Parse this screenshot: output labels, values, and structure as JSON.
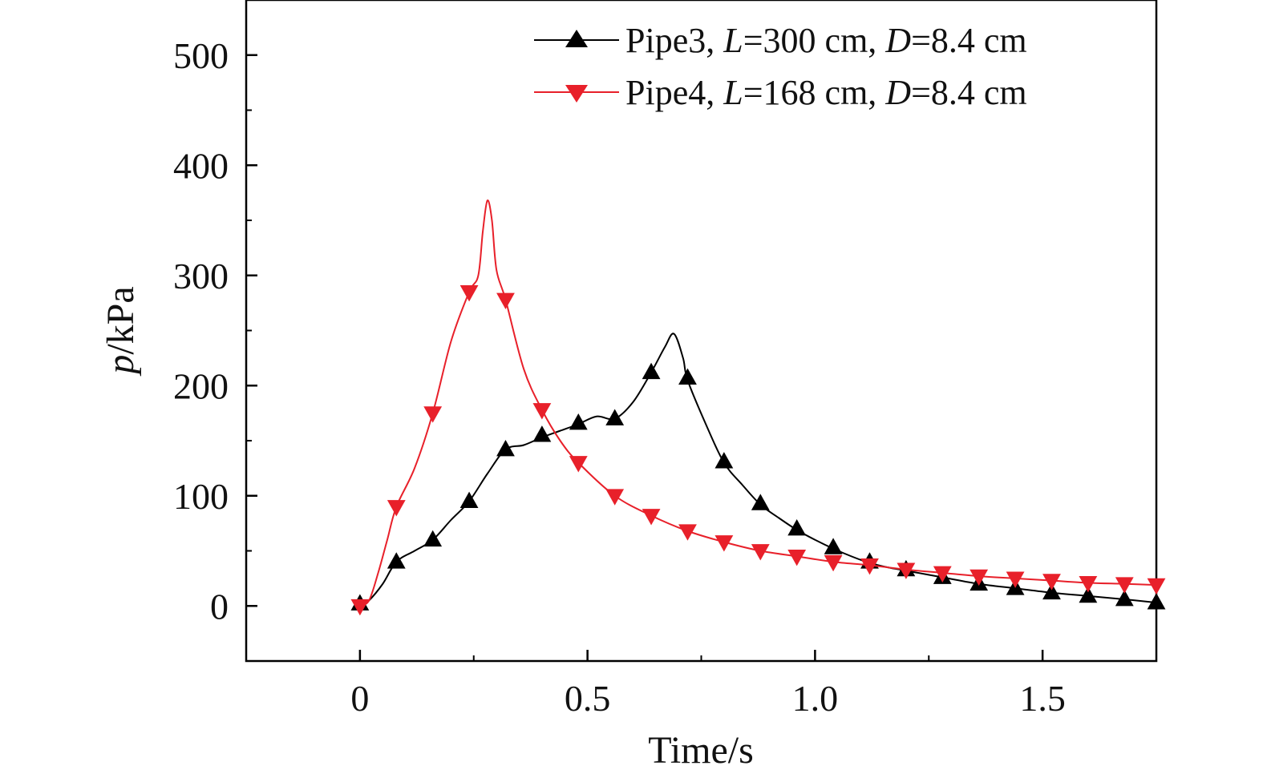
{
  "chart_data": {
    "type": "line",
    "xlabel": "Time/s",
    "ylabel_italic": "p",
    "ylabel_rest": "/kPa",
    "xlim": [
      -0.25,
      1.75
    ],
    "ylim": [
      -50,
      550
    ],
    "x_ticks": [
      0,
      0.5,
      1.0,
      1.5
    ],
    "x_tick_labels": [
      "0",
      "0.5",
      "1.0",
      "1.5"
    ],
    "y_ticks": [
      0,
      100,
      200,
      300,
      400,
      500
    ],
    "y_tick_labels": [
      "0",
      "100",
      "200",
      "300",
      "400",
      "500"
    ],
    "grid": false,
    "legend_position": "top-right",
    "series": [
      {
        "name": "Pipe3, L=300 cm, D=8.4 cm",
        "legend": {
          "pre": "Pipe3, ",
          "v1": "L",
          "mid": "=300 cm, ",
          "v2": "D",
          "post": "=8.4 cm"
        },
        "color": "#000000",
        "marker": "triangle-up",
        "x": [
          0,
          0.02,
          0.05,
          0.08,
          0.12,
          0.16,
          0.2,
          0.24,
          0.28,
          0.32,
          0.36,
          0.4,
          0.44,
          0.48,
          0.52,
          0.56,
          0.6,
          0.64,
          0.67,
          0.69,
          0.71,
          0.72,
          0.76,
          0.8,
          0.84,
          0.88,
          0.92,
          0.96,
          1.0,
          1.04,
          1.08,
          1.12,
          1.16,
          1.2,
          1.28,
          1.36,
          1.44,
          1.52,
          1.6,
          1.68,
          1.75
        ],
        "y": [
          0,
          5,
          20,
          40,
          50,
          60,
          78,
          95,
          120,
          142,
          146,
          153,
          159,
          165,
          172,
          170,
          185,
          212,
          235,
          247,
          225,
          205,
          165,
          130,
          110,
          92,
          80,
          69,
          60,
          52,
          45,
          39,
          35,
          32,
          26,
          20,
          16,
          12,
          9,
          6,
          3
        ],
        "marker_x": [
          0,
          0.08,
          0.16,
          0.24,
          0.32,
          0.4,
          0.48,
          0.56,
          0.64,
          0.72,
          0.8,
          0.88,
          0.96,
          1.04,
          1.12,
          1.2,
          1.28,
          1.36,
          1.44,
          1.52,
          1.6,
          1.68,
          1.75
        ],
        "marker_y": [
          2,
          40,
          60,
          95,
          142,
          155,
          166,
          170,
          212,
          207,
          131,
          93,
          70,
          53,
          40,
          33,
          26,
          20,
          16,
          12,
          9,
          6,
          3
        ]
      },
      {
        "name": "Pipe4, L=168 cm, D=8.4 cm",
        "legend": {
          "pre": "Pipe4, ",
          "v1": "L",
          "mid": "=168 cm, ",
          "v2": "D",
          "post": "=8.4 cm"
        },
        "color": "#e8202a",
        "marker": "triangle-down",
        "x": [
          0,
          0.02,
          0.04,
          0.06,
          0.08,
          0.12,
          0.16,
          0.2,
          0.24,
          0.26,
          0.27,
          0.28,
          0.29,
          0.3,
          0.32,
          0.36,
          0.4,
          0.44,
          0.48,
          0.56,
          0.64,
          0.72,
          0.8,
          0.88,
          0.96,
          1.04,
          1.12,
          1.2,
          1.28,
          1.36,
          1.44,
          1.52,
          1.6,
          1.68,
          1.75
        ],
        "y": [
          0,
          5,
          30,
          60,
          90,
          125,
          175,
          240,
          285,
          300,
          340,
          368,
          350,
          305,
          278,
          215,
          178,
          150,
          130,
          100,
          82,
          68,
          58,
          50,
          45,
          40,
          37,
          33,
          30,
          27,
          25,
          23,
          21,
          20,
          19
        ],
        "marker_x": [
          0,
          0.08,
          0.16,
          0.24,
          0.32,
          0.4,
          0.48,
          0.56,
          0.64,
          0.72,
          0.8,
          0.88,
          0.96,
          1.04,
          1.12,
          1.2,
          1.28,
          1.36,
          1.44,
          1.52,
          1.6,
          1.68,
          1.75
        ],
        "marker_y": [
          0,
          90,
          175,
          285,
          278,
          178,
          130,
          100,
          82,
          68,
          58,
          50,
          45,
          40,
          37,
          33,
          30,
          27,
          25,
          23,
          21,
          20,
          19
        ]
      }
    ]
  }
}
